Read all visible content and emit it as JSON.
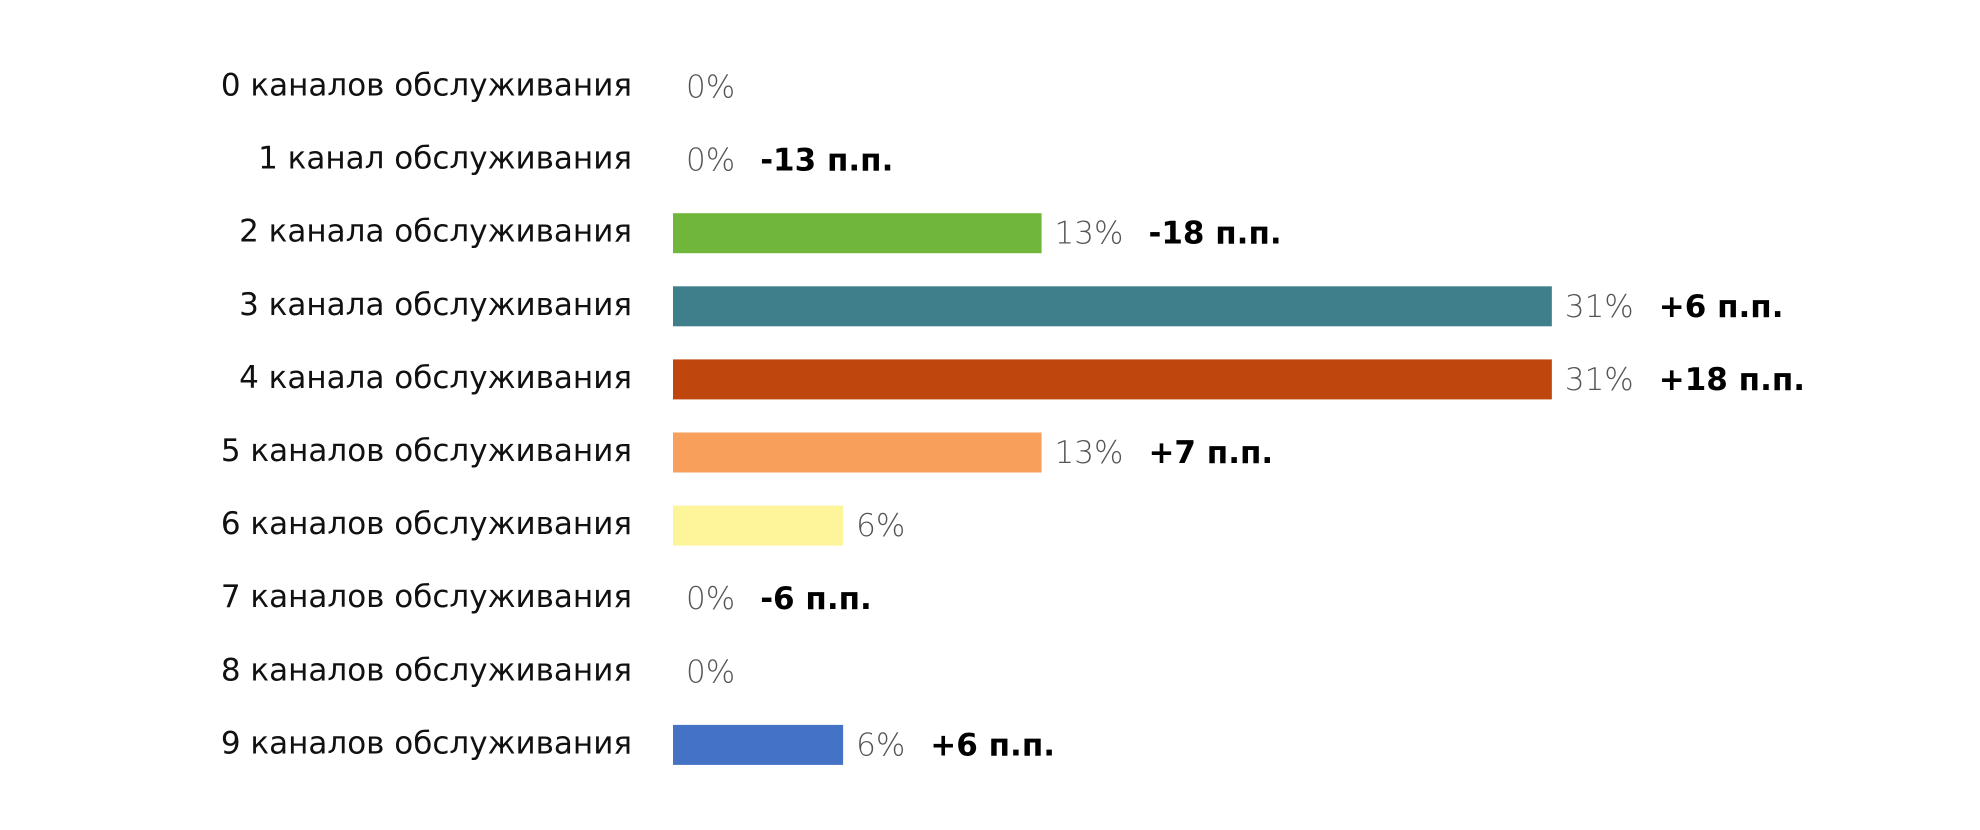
{
  "chart_data": {
    "type": "bar",
    "orientation": "horizontal",
    "categories": [
      "0 каналов обслуживания",
      "1 канал обслуживания",
      "2 канала обслуживания",
      "3 канала обслуживания",
      "4 канала обслуживания",
      "5 каналов обслуживания",
      "6 каналов обслуживания",
      "7 каналов обслуживания",
      "8 каналов обслуживания",
      "9 каналов обслуживания"
    ],
    "values": [
      0,
      0,
      13,
      31,
      31,
      13,
      6,
      0,
      0,
      6
    ],
    "value_labels": [
      "0%",
      "0%",
      "13%",
      "31%",
      "31%",
      "13%",
      "6%",
      "0%",
      "0%",
      "6%"
    ],
    "annotations": [
      null,
      "-13 п.п.",
      "-18 п.п.",
      "+6 п.п.",
      "+18 п.п.",
      "+7 п.п.",
      null,
      "-6 п.п.",
      null,
      "+6 п.п."
    ],
    "colors": [
      null,
      null,
      "#70b63a",
      "#3f7f8b",
      "#bf460c",
      "#f79f5b",
      "#fef59a",
      null,
      null,
      "#4472c4"
    ]
  }
}
